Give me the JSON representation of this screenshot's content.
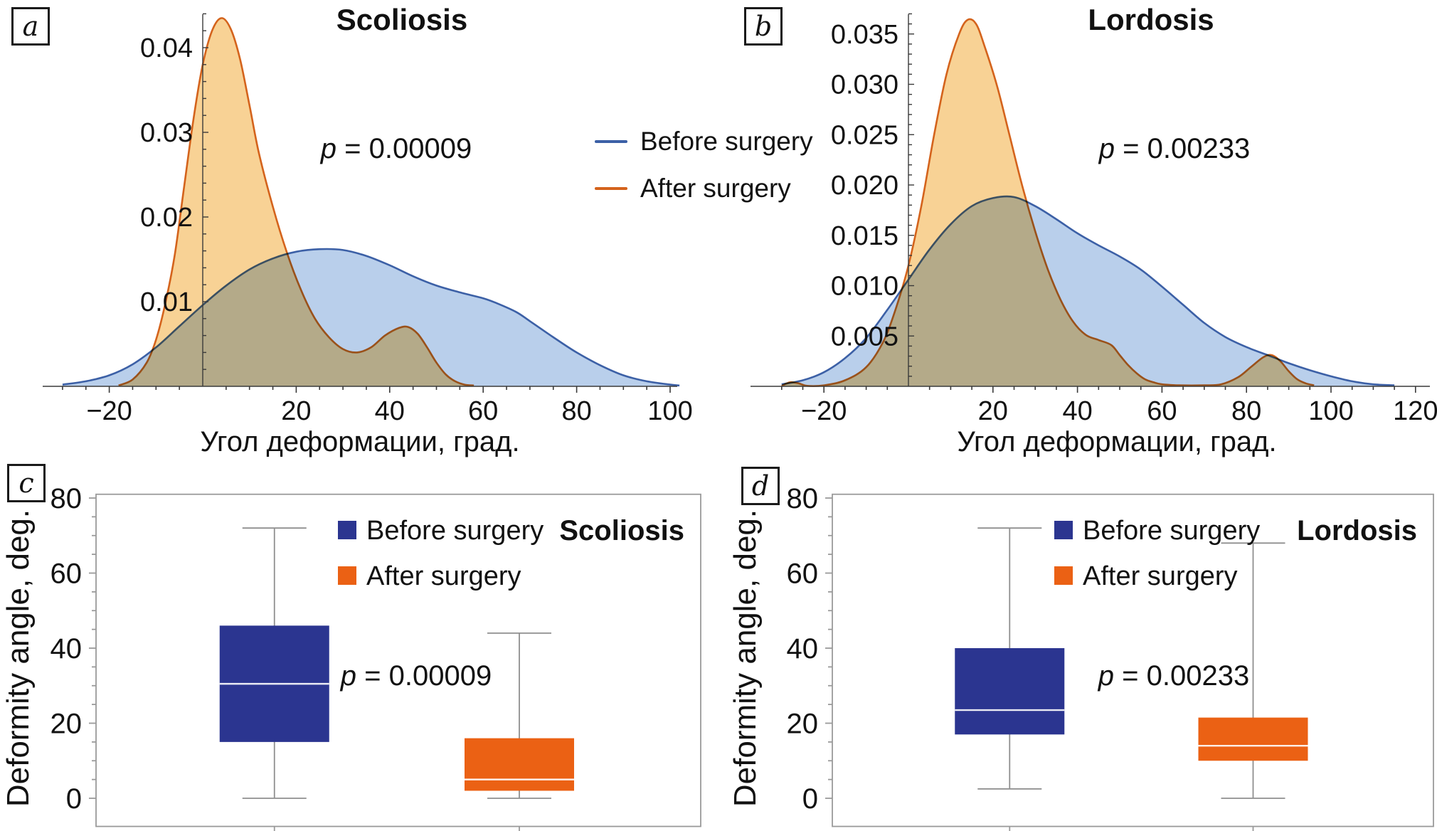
{
  "legend_density": {
    "items": [
      {
        "label": "Before surgery",
        "color": "#3c60a6"
      },
      {
        "label": "After surgery",
        "color": "#d4631c"
      }
    ]
  },
  "colors": {
    "density_before_stroke": "#3c60a6",
    "density_before_fill": "#b9cfeb",
    "density_after_stroke": "#d4631c",
    "density_after_fill": "#f8d295",
    "box_before": "#2b3590",
    "box_after": "#eb6114",
    "whisker_gray": "#8f8f8f",
    "frame_gray": "#9a9a9a"
  },
  "chart_data": [
    {
      "id": "density-scoliosis",
      "panel": "a",
      "type": "area",
      "title": "Scoliosis",
      "p_value": "p = 0.00009",
      "xlabel": "Угол деформации, град.",
      "x_ticks": [
        -20,
        20,
        40,
        60,
        80,
        100
      ],
      "x_minor_step": 5,
      "x_range": [
        -32,
        102
      ],
      "y_ticks": [
        0.01,
        0.02,
        0.03,
        0.04
      ],
      "y_tick_labels": [
        "0.01",
        "0.02",
        "0.03",
        "0.04"
      ],
      "y_minor_step": 0.002,
      "y_axis_max": 0.044,
      "legend_position": "between-panels",
      "grid": false,
      "series": [
        {
          "name": "After surgery",
          "stroke": "#d4631c",
          "fill": "#f8d295",
          "points": [
            [
              -18,
              0.0001
            ],
            [
              -15,
              0.0008
            ],
            [
              -12,
              0.0028
            ],
            [
              -10,
              0.0055
            ],
            [
              -8,
              0.0098
            ],
            [
              -6,
              0.0155
            ],
            [
              -4,
              0.0235
            ],
            [
              -2,
              0.0315
            ],
            [
              0,
              0.038
            ],
            [
              2,
              0.042
            ],
            [
              4,
              0.0435
            ],
            [
              6,
              0.0422
            ],
            [
              8,
              0.0386
            ],
            [
              10,
              0.0332
            ],
            [
              12,
              0.0276
            ],
            [
              15,
              0.0212
            ],
            [
              18,
              0.0158
            ],
            [
              21,
              0.0114
            ],
            [
              24,
              0.008
            ],
            [
              27,
              0.0058
            ],
            [
              30,
              0.0044
            ],
            [
              33,
              0.004
            ],
            [
              36,
              0.0046
            ],
            [
              39,
              0.006
            ],
            [
              42,
              0.0069
            ],
            [
              44,
              0.007
            ],
            [
              46,
              0.0062
            ],
            [
              48,
              0.0046
            ],
            [
              50,
              0.0028
            ],
            [
              52,
              0.0014
            ],
            [
              54,
              0.0006
            ],
            [
              56,
              0.0002
            ],
            [
              58,
              0.0001
            ]
          ]
        },
        {
          "name": "Before surgery",
          "stroke": "#3c60a6",
          "fill": "#b9cfeb",
          "points": [
            [
              -30,
              0.0002
            ],
            [
              -25,
              0.0006
            ],
            [
              -20,
              0.0013
            ],
            [
              -15,
              0.0026
            ],
            [
              -10,
              0.0046
            ],
            [
              -5,
              0.0071
            ],
            [
              0,
              0.0096
            ],
            [
              5,
              0.0119
            ],
            [
              10,
              0.0138
            ],
            [
              15,
              0.0151
            ],
            [
              20,
              0.0159
            ],
            [
              25,
              0.0162
            ],
            [
              30,
              0.0161
            ],
            [
              35,
              0.0154
            ],
            [
              40,
              0.0143
            ],
            [
              45,
              0.013
            ],
            [
              50,
              0.0119
            ],
            [
              55,
              0.0111
            ],
            [
              60,
              0.0104
            ],
            [
              63,
              0.0098
            ],
            [
              67,
              0.0088
            ],
            [
              70,
              0.0077
            ],
            [
              75,
              0.0058
            ],
            [
              80,
              0.004
            ],
            [
              85,
              0.0025
            ],
            [
              90,
              0.0013
            ],
            [
              95,
              0.0006
            ],
            [
              100,
              0.0002
            ],
            [
              102,
              0.0001
            ]
          ]
        }
      ]
    },
    {
      "id": "density-lordosis",
      "panel": "b",
      "type": "area",
      "title": "Lordosis",
      "p_value": "p = 0.00233",
      "xlabel": "Угол деформации, град.",
      "x_ticks": [
        -20,
        20,
        40,
        60,
        80,
        100,
        120
      ],
      "x_minor_step": 5,
      "x_range": [
        -32,
        122
      ],
      "y_ticks": [
        0.005,
        0.01,
        0.015,
        0.02,
        0.025,
        0.03,
        0.035
      ],
      "y_tick_labels": [
        "0.005",
        "0.010",
        "0.015",
        "0.020",
        "0.025",
        "0.030",
        "0.035"
      ],
      "y_minor_step": 0.001,
      "y_axis_max": 0.037,
      "legend_position": "between-panels",
      "grid": false,
      "series": [
        {
          "name": "After surgery",
          "stroke": "#d4631c",
          "fill": "#f8d295",
          "points": [
            [
              -30,
              5e-05
            ],
            [
              -28,
              0.0004
            ],
            [
              -26,
              0.0003
            ],
            [
              -24,
              5e-05
            ],
            [
              -20,
              0.0001
            ],
            [
              -15,
              0.0006
            ],
            [
              -10,
              0.0019
            ],
            [
              -6,
              0.0044
            ],
            [
              -3,
              0.0077
            ],
            [
              0,
              0.012
            ],
            [
              3,
              0.0178
            ],
            [
              6,
              0.0248
            ],
            [
              9,
              0.031
            ],
            [
              12,
              0.035
            ],
            [
              14,
              0.0364
            ],
            [
              16,
              0.036
            ],
            [
              18,
              0.0338
            ],
            [
              21,
              0.0298
            ],
            [
              24,
              0.0248
            ],
            [
              27,
              0.0198
            ],
            [
              30,
              0.0154
            ],
            [
              33,
              0.0116
            ],
            [
              36,
              0.0086
            ],
            [
              39,
              0.0064
            ],
            [
              42,
              0.0051
            ],
            [
              45,
              0.0046
            ],
            [
              48,
              0.0041
            ],
            [
              50,
              0.0031
            ],
            [
              52,
              0.0021
            ],
            [
              54,
              0.0013
            ],
            [
              56,
              0.0007
            ],
            [
              58,
              0.0004
            ],
            [
              60,
              0.0002
            ],
            [
              64,
              0.0001
            ],
            [
              70,
              0.0001
            ],
            [
              74,
              0.0002
            ],
            [
              78,
              0.0009
            ],
            [
              81,
              0.0019
            ],
            [
              84,
              0.0029
            ],
            [
              86,
              0.0031
            ],
            [
              88,
              0.0025
            ],
            [
              90,
              0.0015
            ],
            [
              92,
              0.0007
            ],
            [
              94,
              0.0003
            ],
            [
              96,
              0.0001
            ]
          ]
        },
        {
          "name": "Before surgery",
          "stroke": "#3c60a6",
          "fill": "#b9cfeb",
          "points": [
            [
              -30,
              0.0002
            ],
            [
              -25,
              0.0006
            ],
            [
              -20,
              0.0014
            ],
            [
              -15,
              0.0028
            ],
            [
              -10,
              0.0048
            ],
            [
              -5,
              0.0076
            ],
            [
              0,
              0.0106
            ],
            [
              5,
              0.0136
            ],
            [
              10,
              0.0161
            ],
            [
              15,
              0.0179
            ],
            [
              20,
              0.0187
            ],
            [
              25,
              0.0188
            ],
            [
              30,
              0.0179
            ],
            [
              35,
              0.0166
            ],
            [
              40,
              0.0152
            ],
            [
              45,
              0.014
            ],
            [
              50,
              0.0129
            ],
            [
              55,
              0.0116
            ],
            [
              60,
              0.0099
            ],
            [
              65,
              0.0081
            ],
            [
              70,
              0.0063
            ],
            [
              75,
              0.0049
            ],
            [
              80,
              0.0039
            ],
            [
              85,
              0.0031
            ],
            [
              90,
              0.0023
            ],
            [
              95,
              0.0016
            ],
            [
              100,
              0.001
            ],
            [
              105,
              0.0005
            ],
            [
              110,
              0.0002
            ],
            [
              115,
              0.0001
            ]
          ]
        }
      ]
    },
    {
      "id": "box-scoliosis",
      "panel": "c",
      "type": "box",
      "title": "Scoliosis",
      "p_value": "p = 0.00009",
      "ylabel": "Deformity angle, deg.",
      "y_ticks": [
        0,
        20,
        40,
        60,
        80
      ],
      "y_tick_labels": [
        "0",
        "20",
        "40",
        "60",
        "80"
      ],
      "y_minor_step": 5,
      "y_range": [
        -7.5,
        81
      ],
      "grid": false,
      "boxes": [
        {
          "name": "Before surgery",
          "color": "#2b3590",
          "min": 0,
          "q1": 15,
          "median": 30.5,
          "q3": 46,
          "max": 72
        },
        {
          "name": "After surgery",
          "color": "#eb6114",
          "min": 0,
          "q1": 2,
          "median": 5,
          "q3": 16,
          "max": 44
        }
      ]
    },
    {
      "id": "box-lordosis",
      "panel": "d",
      "type": "box",
      "title": "Lordosis",
      "p_value": "p = 0.00233",
      "ylabel": "Deformity angle, deg.",
      "y_ticks": [
        0,
        20,
        40,
        60,
        80
      ],
      "y_tick_labels": [
        "0",
        "20",
        "40",
        "60",
        "80"
      ],
      "y_minor_step": 5,
      "y_range": [
        -7.5,
        81
      ],
      "grid": false,
      "boxes": [
        {
          "name": "Before surgery",
          "color": "#2b3590",
          "min": 2.5,
          "q1": 17,
          "median": 23.5,
          "q3": 40,
          "max": 72
        },
        {
          "name": "After surgery",
          "color": "#eb6114",
          "min": 0,
          "q1": 10,
          "median": 14,
          "q3": 21.5,
          "max": 68
        }
      ]
    }
  ]
}
